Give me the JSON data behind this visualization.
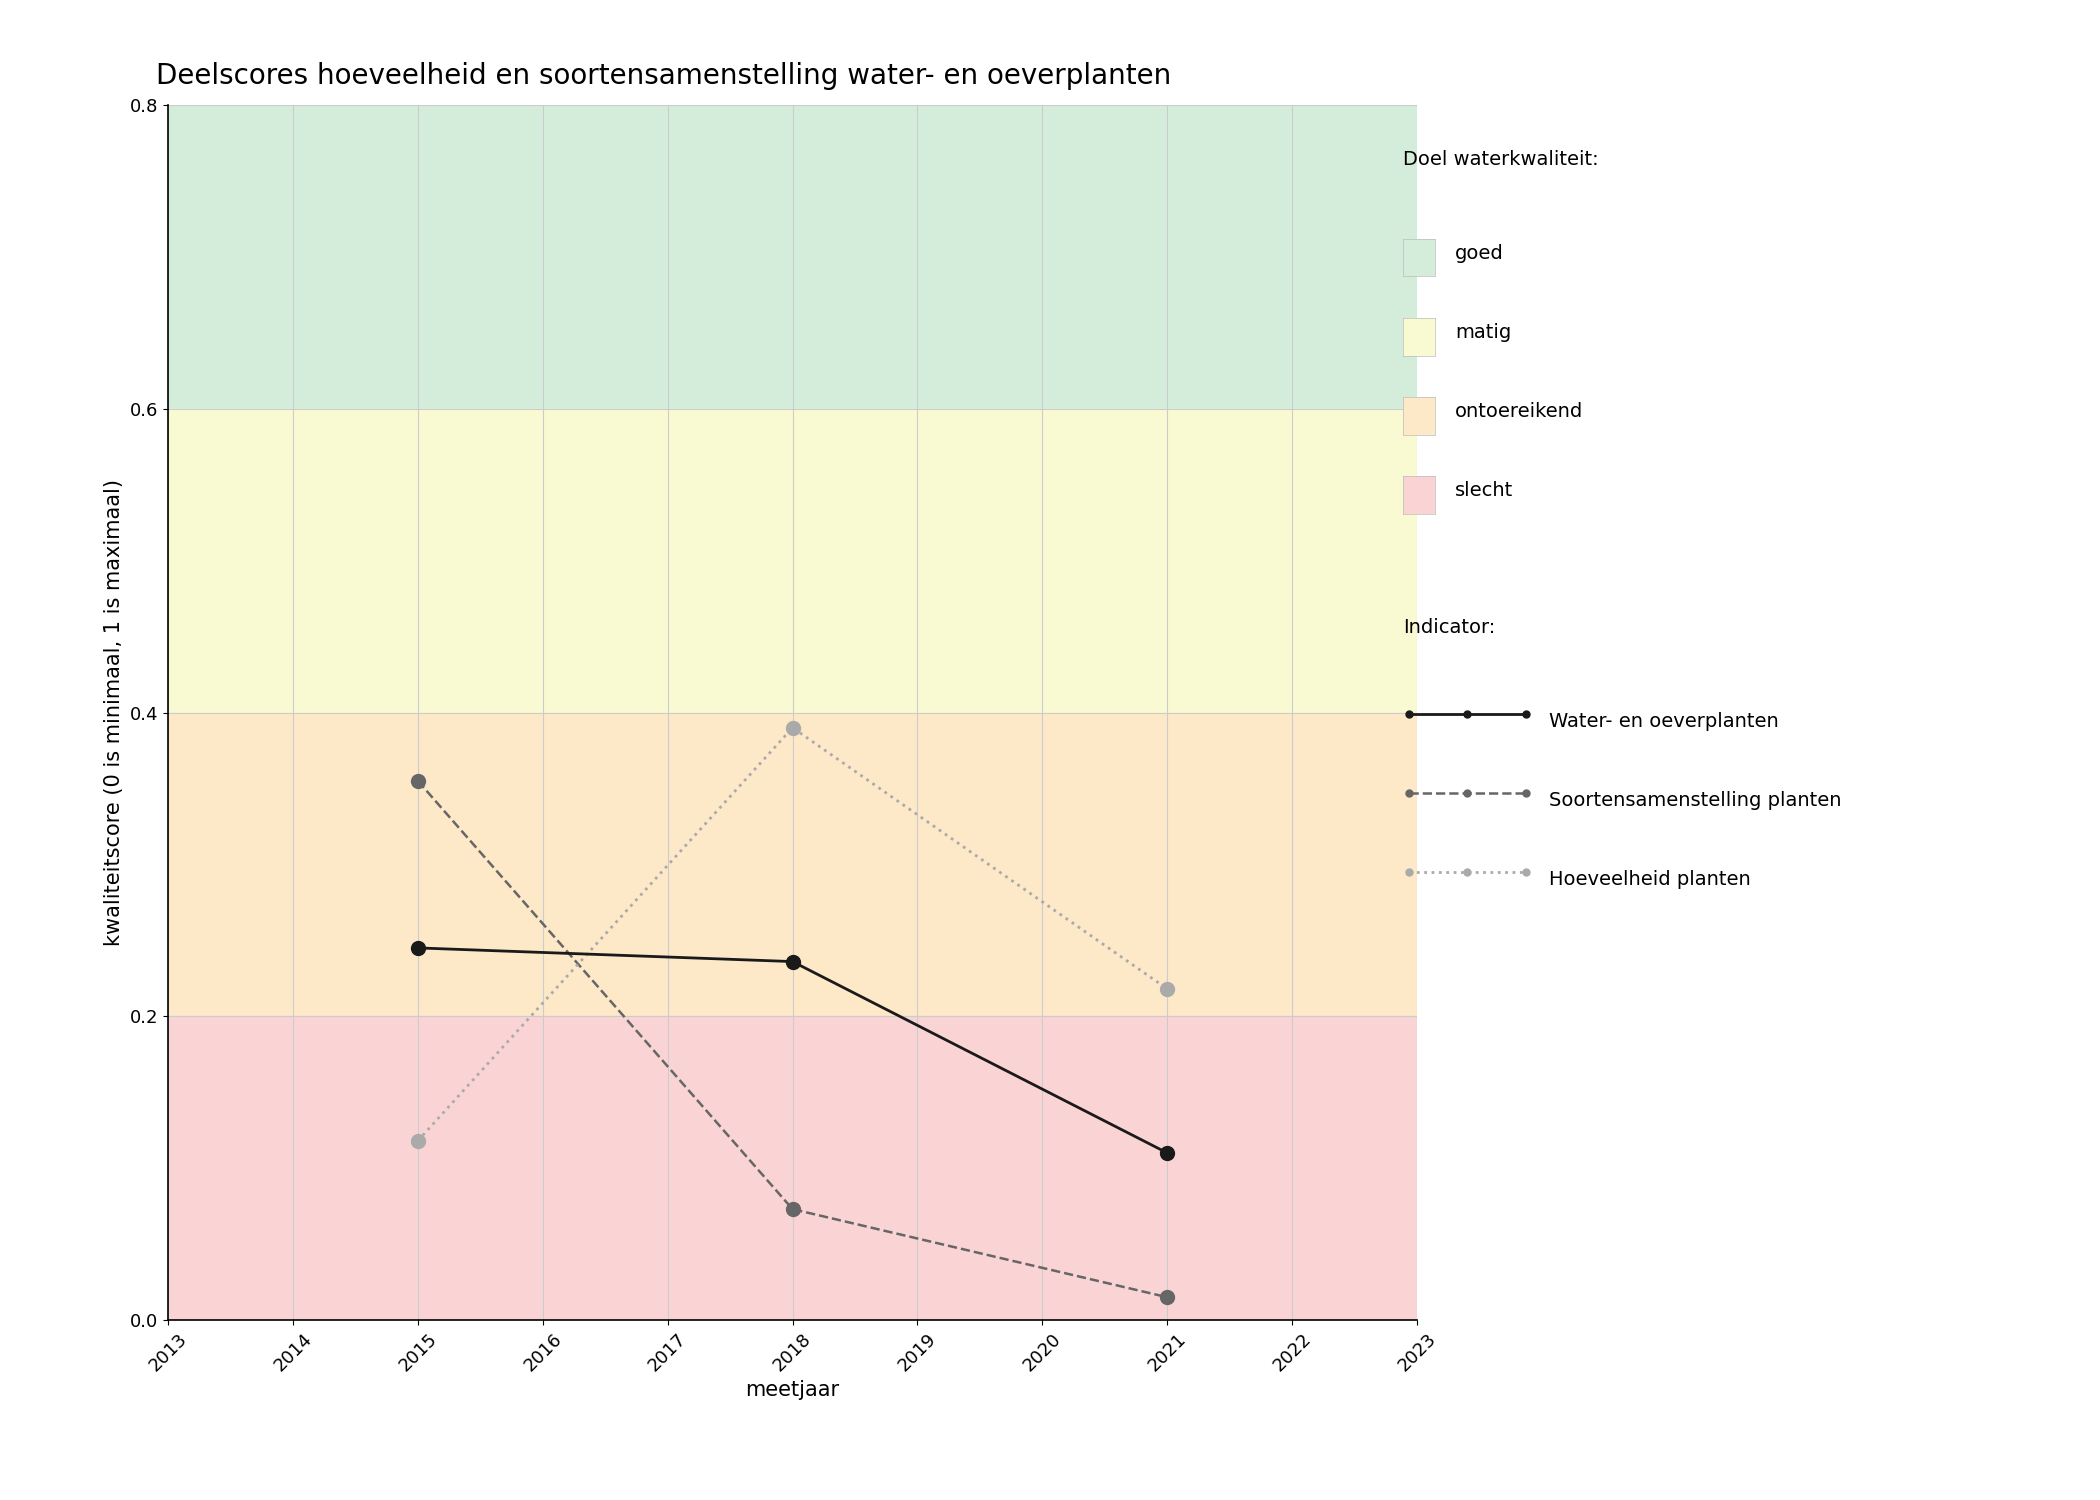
{
  "title": "Deelscores hoeveelheid en soortensamenstelling water- en oeverplanten",
  "xlabel": "meetjaar",
  "ylabel": "kwaliteitscore (0 is minimaal, 1 is maximaal)",
  "xlim": [
    2013,
    2023
  ],
  "ylim": [
    0.0,
    0.8
  ],
  "xticks": [
    2013,
    2014,
    2015,
    2016,
    2017,
    2018,
    2019,
    2020,
    2021,
    2022,
    2023
  ],
  "yticks": [
    0.0,
    0.2,
    0.4,
    0.6,
    0.8
  ],
  "bg_zones_ordered": [
    {
      "name": "goed",
      "ymin": 0.6,
      "ymax": 0.8,
      "color": "#d4edda"
    },
    {
      "name": "matig",
      "ymin": 0.4,
      "ymax": 0.6,
      "color": "#fafad2"
    },
    {
      "name": "ontoereikend",
      "ymin": 0.2,
      "ymax": 0.4,
      "color": "#fde8c8"
    },
    {
      "name": "slecht",
      "ymin": 0.0,
      "ymax": 0.2,
      "color": "#fad4d4"
    }
  ],
  "series": {
    "water_oever": {
      "years": [
        2015,
        2018,
        2021
      ],
      "values": [
        0.245,
        0.236,
        0.11
      ],
      "color": "#1a1a1a",
      "linestyle": "solid",
      "linewidth": 2.0,
      "marker": "o",
      "markersize": 10,
      "label": "Water- en oeverplanten",
      "zorder": 5
    },
    "soortensamenstelling": {
      "years": [
        2015,
        2018,
        2021
      ],
      "values": [
        0.355,
        0.073,
        0.015
      ],
      "color": "#666666",
      "linestyle": "dashed",
      "linewidth": 1.8,
      "marker": "o",
      "markersize": 10,
      "label": "Soortensamenstelling planten",
      "zorder": 4
    },
    "hoeveelheid": {
      "years": [
        2015,
        2018,
        2021
      ],
      "values": [
        0.118,
        0.39,
        0.218
      ],
      "color": "#aaaaaa",
      "linestyle": "dotted",
      "linewidth": 2.0,
      "marker": "o",
      "markersize": 10,
      "label": "Hoeveelheid planten",
      "zorder": 4
    }
  },
  "legend_bg_labels": [
    "goed",
    "matig",
    "ontoereikend",
    "slecht"
  ],
  "legend_bg_colors": {
    "goed": "#d4edda",
    "matig": "#fafad2",
    "ontoereikend": "#fde8c8",
    "slecht": "#fad4d4"
  },
  "title_fontsize": 20,
  "axis_label_fontsize": 15,
  "tick_fontsize": 13,
  "legend_fontsize": 14,
  "grid_color": "#cccccc",
  "background_color": "#ffffff"
}
